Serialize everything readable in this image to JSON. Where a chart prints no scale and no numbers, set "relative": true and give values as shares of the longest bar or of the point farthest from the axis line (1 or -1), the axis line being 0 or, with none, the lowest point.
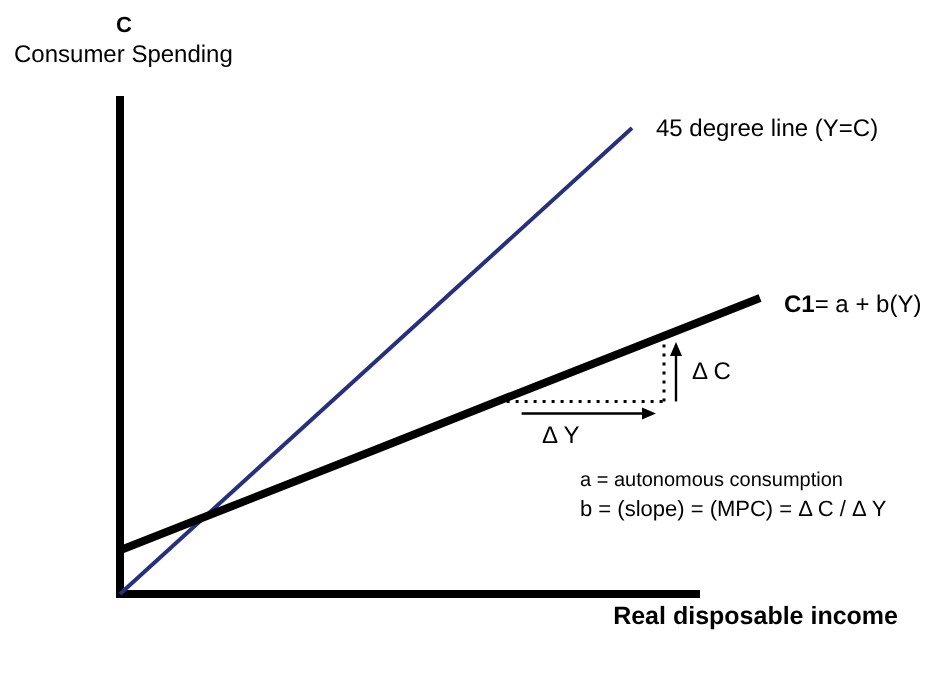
{
  "chart_data": {
    "type": "line",
    "relative": true,
    "ylabel": "C\nConsumer Spending",
    "xlabel": "Real disposable income",
    "categories": [
      null,
      null,
      null,
      null,
      null,
      null
    ],
    "series": [
      {
        "name": "45 degree line (Y=C)",
        "color": "#27307a",
        "values": [
          0,
          0.25,
          0.5,
          0.75,
          1,
          null
        ]
      },
      {
        "name": "C1= a + b(Y)",
        "color": "#000000",
        "values": [
          0.094,
          0.202,
          0.31,
          0.419,
          0.527,
          0.635
        ]
      }
    ],
    "annotations": [
      "Δ Y",
      "Δ C",
      "a = autonomous consumption",
      "b = (slope) = (MPC)  = Δ C / Δ Y"
    ]
  }
}
